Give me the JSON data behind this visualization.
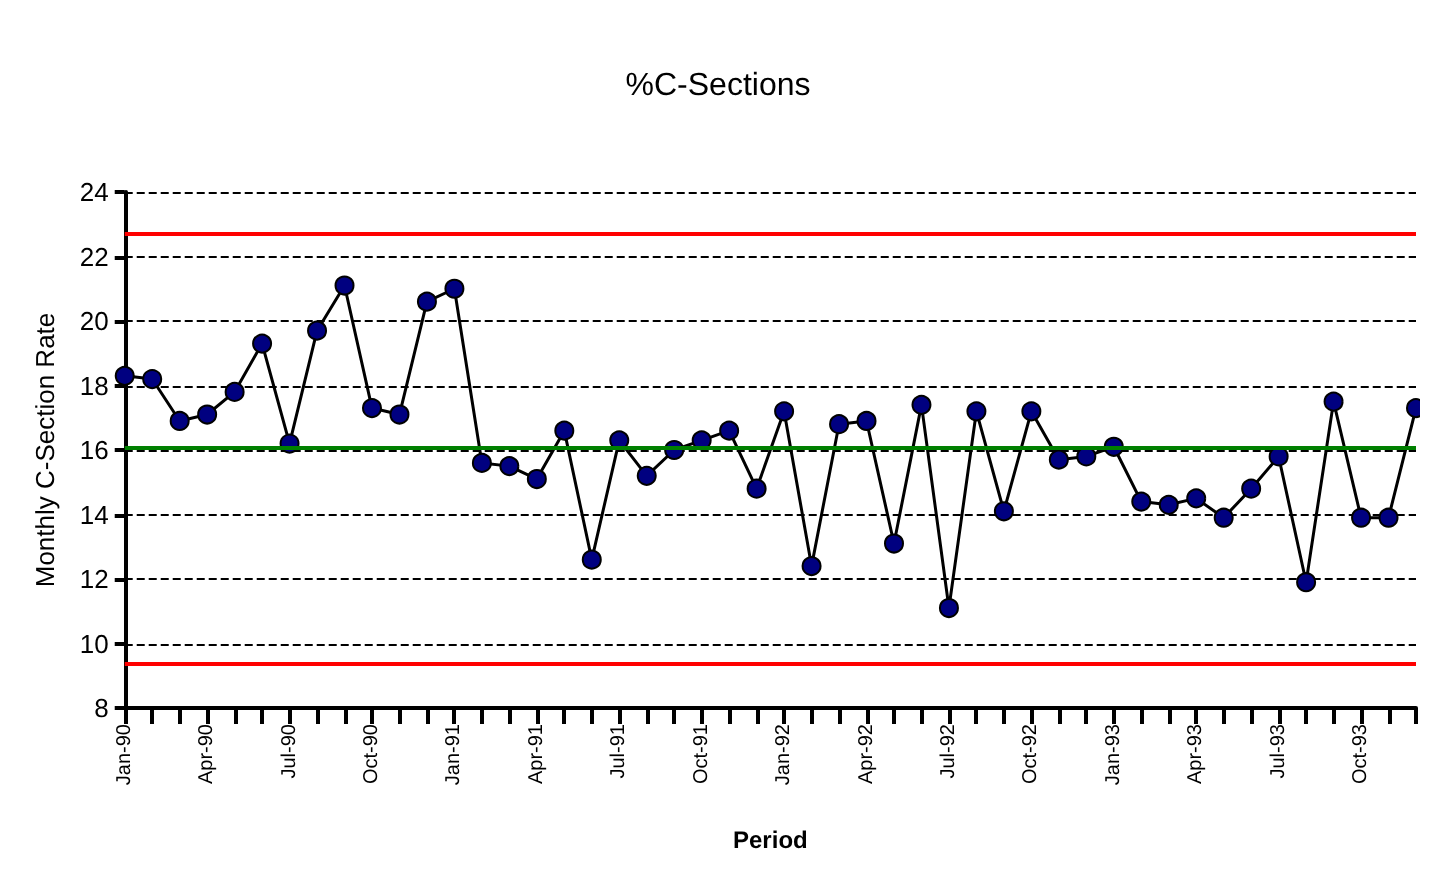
{
  "chart_data": {
    "type": "line",
    "title": "%C-Sections",
    "xlabel": "Period",
    "ylabel": "Monthly C-Section Rate",
    "categories": [
      "Jan-90",
      null,
      null,
      "Apr-90",
      null,
      null,
      "Jul-90",
      null,
      null,
      "Oct-90",
      null,
      null,
      "Jan-91",
      null,
      null,
      "Apr-91",
      null,
      null,
      "Jul-91",
      null,
      null,
      "Oct-91",
      null,
      null,
      "Jan-92",
      null,
      null,
      "Apr-92",
      null,
      null,
      "Jul-92",
      null,
      null,
      "Oct-92",
      null,
      null,
      "Jan-93",
      null,
      null,
      "Apr-93",
      null,
      null,
      "Jul-93",
      null,
      null,
      "Oct-93",
      null,
      null
    ],
    "series": [
      {
        "color": "#000080",
        "values": [
          18.3,
          18.2,
          16.9,
          17.1,
          17.8,
          19.3,
          16.2,
          19.7,
          21.1,
          17.3,
          17.1,
          20.6,
          21.0,
          15.6,
          15.5,
          15.1,
          16.6,
          12.6,
          16.3,
          15.2,
          16.0,
          16.3,
          16.6,
          14.8,
          17.2,
          12.4,
          16.8,
          16.9,
          13.1,
          17.4,
          11.1,
          17.2,
          14.1,
          17.2,
          15.7,
          15.8,
          16.1,
          14.4,
          14.3,
          14.5,
          13.9,
          14.8,
          15.8,
          11.9,
          17.5,
          13.9,
          13.9,
          17.3
        ]
      }
    ],
    "ylim": [
      8,
      24
    ],
    "yticks": [
      8,
      10,
      12,
      14,
      16,
      18,
      20,
      22,
      24
    ],
    "grid": "y",
    "marker": "circle",
    "line_style": "solid",
    "ref_lines": [
      {
        "axis": "y",
        "value": 22.7,
        "color": "#ff0000"
      },
      {
        "axis": "y",
        "value": 16.1,
        "color": "#008000"
      },
      {
        "axis": "y",
        "value": 9.4,
        "color": "#ff0000"
      }
    ]
  }
}
